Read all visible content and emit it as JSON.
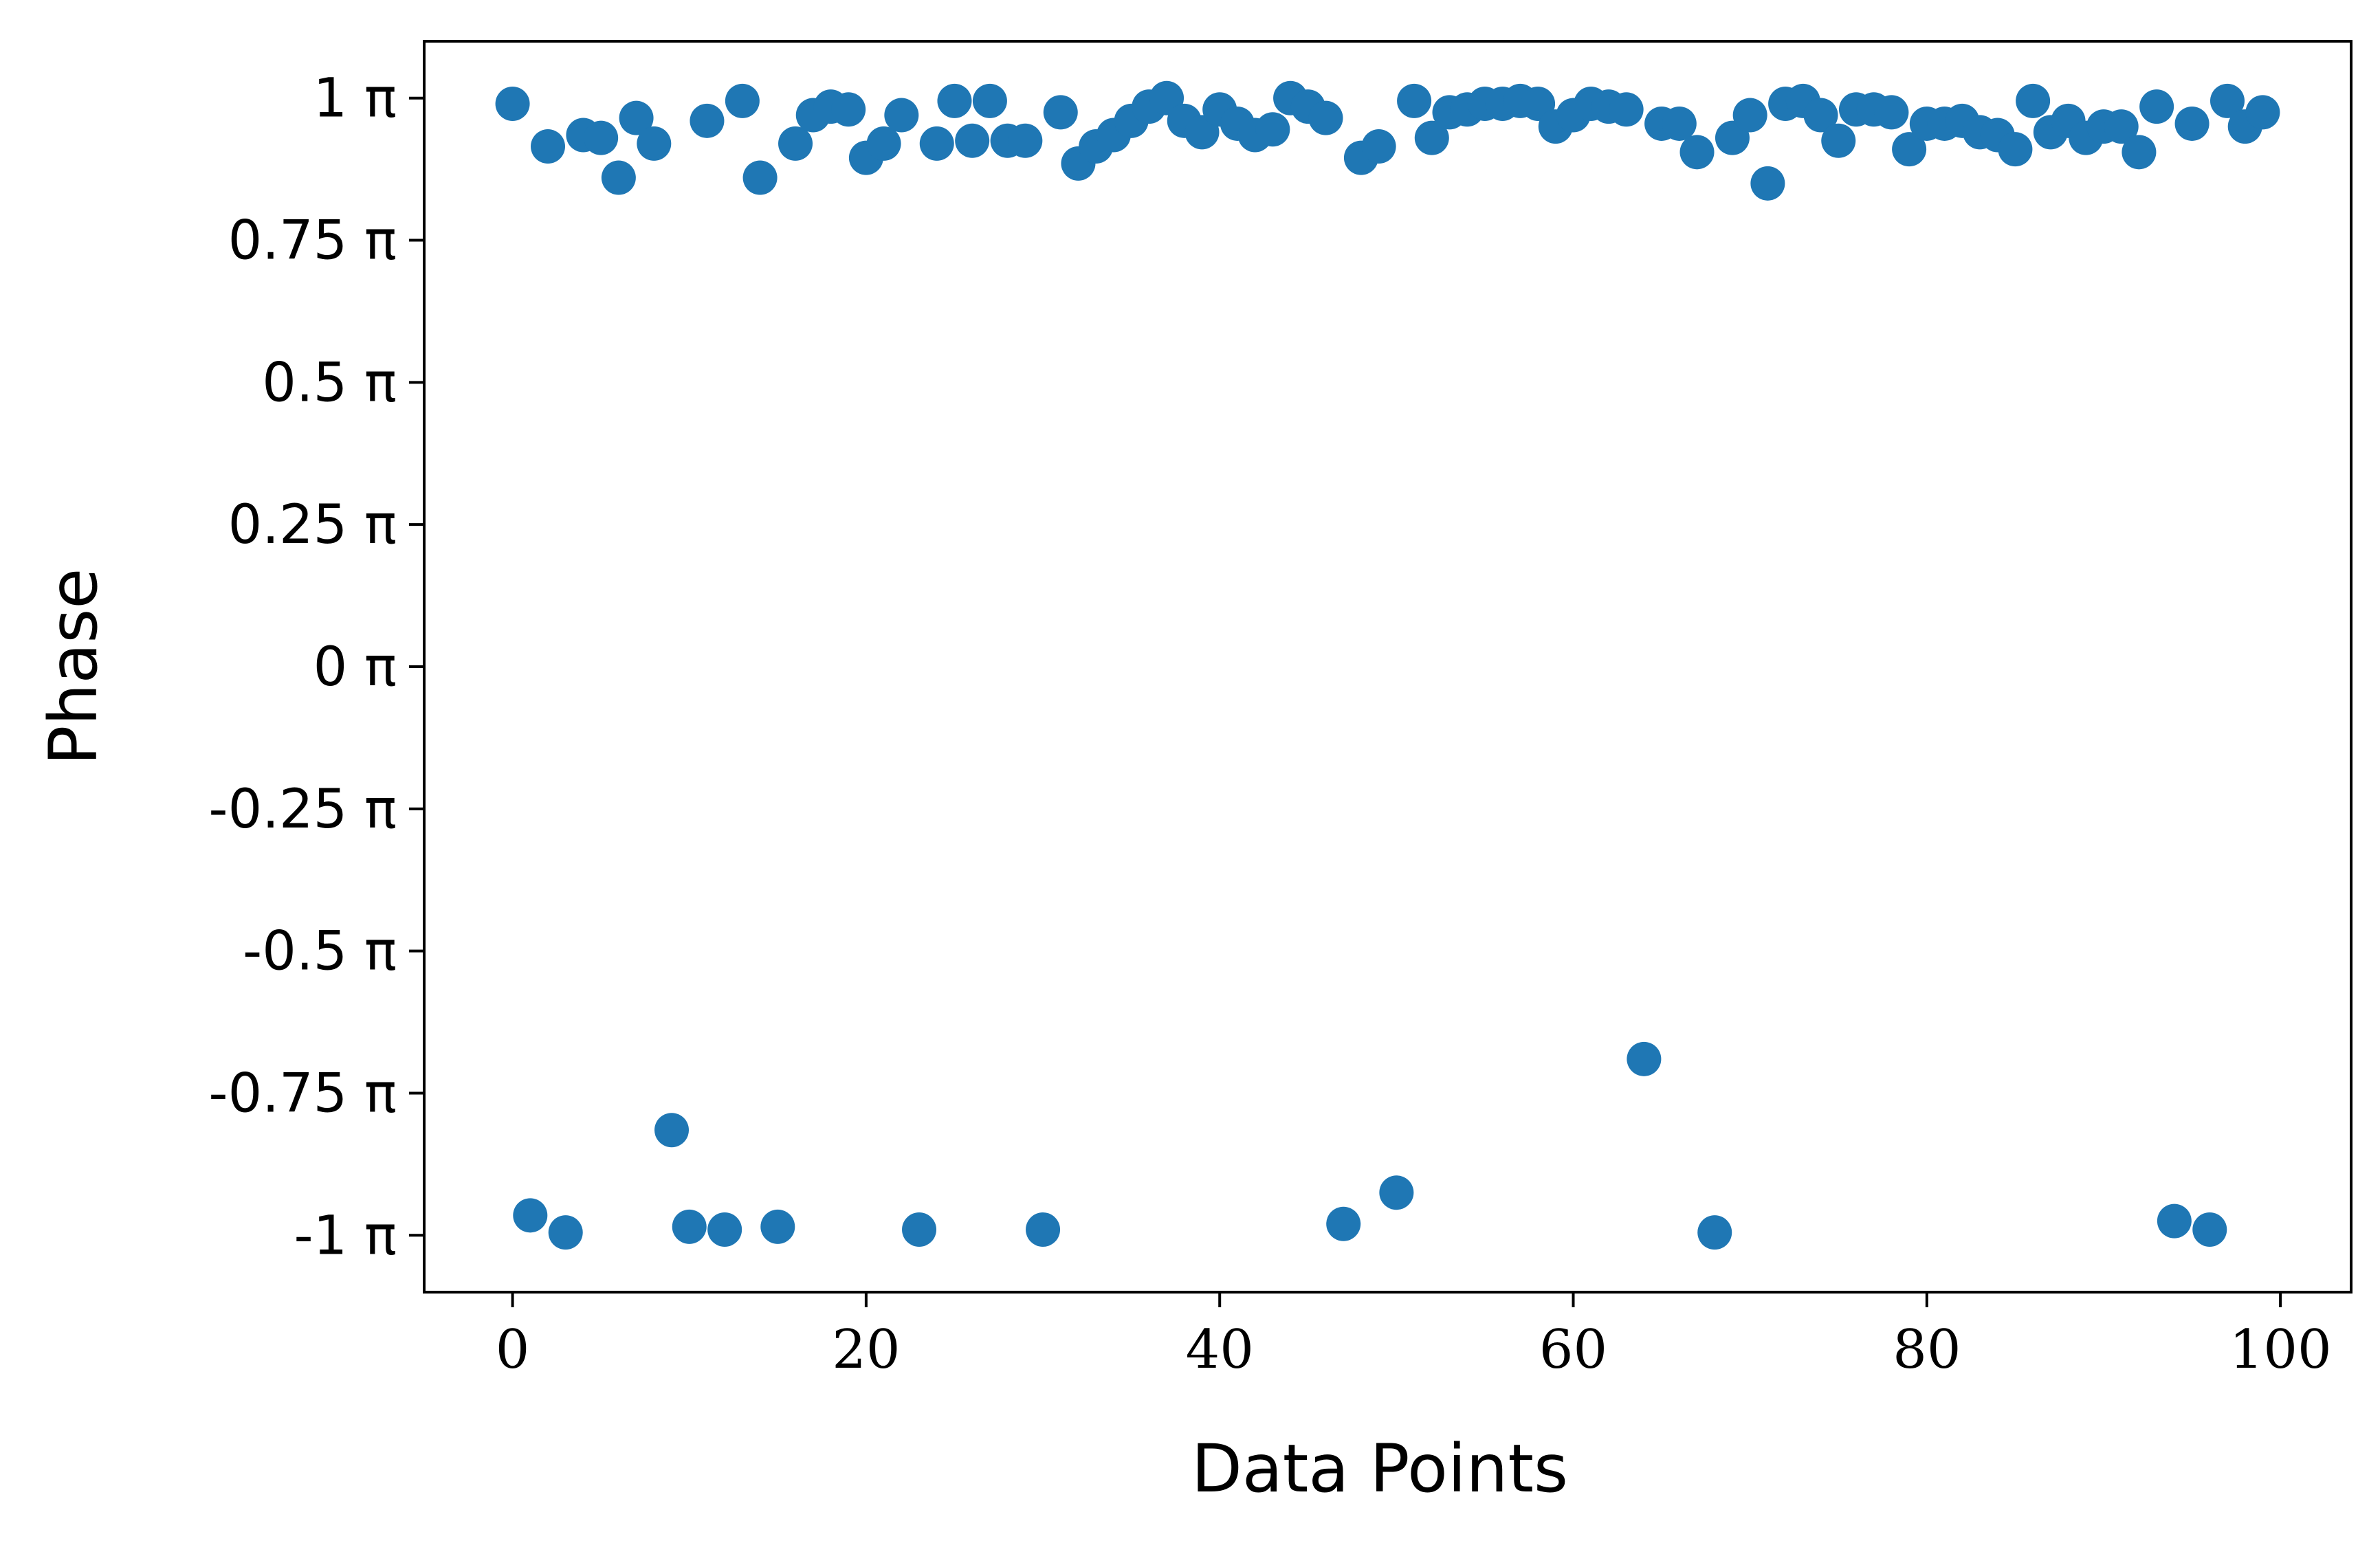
{
  "chart_data": {
    "type": "scatter",
    "xlabel": "Data Points",
    "ylabel": "Phase",
    "xlim": [
      -5,
      104
    ],
    "ylim": [
      -1.1,
      1.1
    ],
    "x_ticks": [
      {
        "value": 0,
        "label": "0"
      },
      {
        "value": 20,
        "label": "20"
      },
      {
        "value": 40,
        "label": "40"
      },
      {
        "value": 60,
        "label": "60"
      },
      {
        "value": 80,
        "label": "80"
      },
      {
        "value": 100,
        "label": "100"
      }
    ],
    "y_ticks": [
      {
        "value": 1,
        "label": "1 π"
      },
      {
        "value": 0.75,
        "label": "0.75 π"
      },
      {
        "value": 0.5,
        "label": "0.5 π"
      },
      {
        "value": 0.25,
        "label": "0.25 π"
      },
      {
        "value": 0,
        "label": "0 π"
      },
      {
        "value": -0.25,
        "label": "-0.25 π"
      },
      {
        "value": -0.5,
        "label": "-0.5 π"
      },
      {
        "value": -0.75,
        "label": "-0.75 π"
      },
      {
        "value": -1,
        "label": "-1 π"
      }
    ],
    "grid": false,
    "color": "#1f77b4",
    "series": [
      {
        "x": [
          0,
          1,
          2,
          3,
          4,
          5,
          6,
          7,
          8,
          9,
          10,
          11,
          12,
          13,
          14,
          15,
          16,
          17,
          18,
          19,
          20,
          21,
          22,
          23,
          24,
          25,
          26,
          27,
          28,
          29,
          30,
          31,
          32,
          33,
          34,
          35,
          36,
          37,
          38,
          39,
          40,
          41,
          42,
          43,
          44,
          45,
          46,
          47,
          48,
          49,
          50,
          51,
          52,
          53,
          54,
          55,
          56,
          57,
          58,
          59,
          60,
          61,
          62,
          63,
          64,
          65,
          66,
          67,
          68,
          69,
          70,
          71,
          72,
          73,
          74,
          75,
          76,
          77,
          78,
          79,
          80,
          81,
          82,
          83,
          84,
          85,
          86,
          87,
          88,
          89,
          90,
          91,
          92,
          93,
          94,
          95,
          96,
          97,
          98,
          99
        ],
        "y": [
          0.99,
          -0.965,
          0.915,
          -0.995,
          0.935,
          0.93,
          0.86,
          0.965,
          0.92,
          -0.815,
          -0.985,
          0.96,
          -0.99,
          0.995,
          0.86,
          -0.985,
          0.92,
          0.97,
          0.985,
          0.98,
          0.895,
          0.92,
          0.97,
          -0.99,
          0.92,
          0.995,
          0.925,
          0.995,
          0.925,
          0.925,
          -0.99,
          0.975,
          0.885,
          0.915,
          0.935,
          0.96,
          0.985,
          1.0,
          0.96,
          0.94,
          0.98,
          0.955,
          0.935,
          0.945,
          1.0,
          0.985,
          0.965,
          -0.98,
          0.895,
          0.915,
          -0.925,
          0.995,
          0.93,
          0.975,
          0.98,
          0.99,
          0.99,
          0.995,
          0.99,
          0.95,
          0.97,
          0.99,
          0.985,
          0.98,
          -0.69,
          0.955,
          0.955,
          0.905,
          -0.995,
          0.93,
          0.97,
          0.85,
          0.99,
          0.995,
          0.97,
          0.925,
          0.98,
          0.98,
          0.975,
          0.91,
          0.955,
          0.955,
          0.96,
          0.94,
          0.935,
          0.91,
          0.995,
          0.94,
          0.96,
          0.93,
          0.95,
          0.95,
          0.905,
          0.985,
          -0.975,
          0.955,
          -0.99,
          0.995,
          0.95,
          0.975
        ]
      }
    ]
  }
}
